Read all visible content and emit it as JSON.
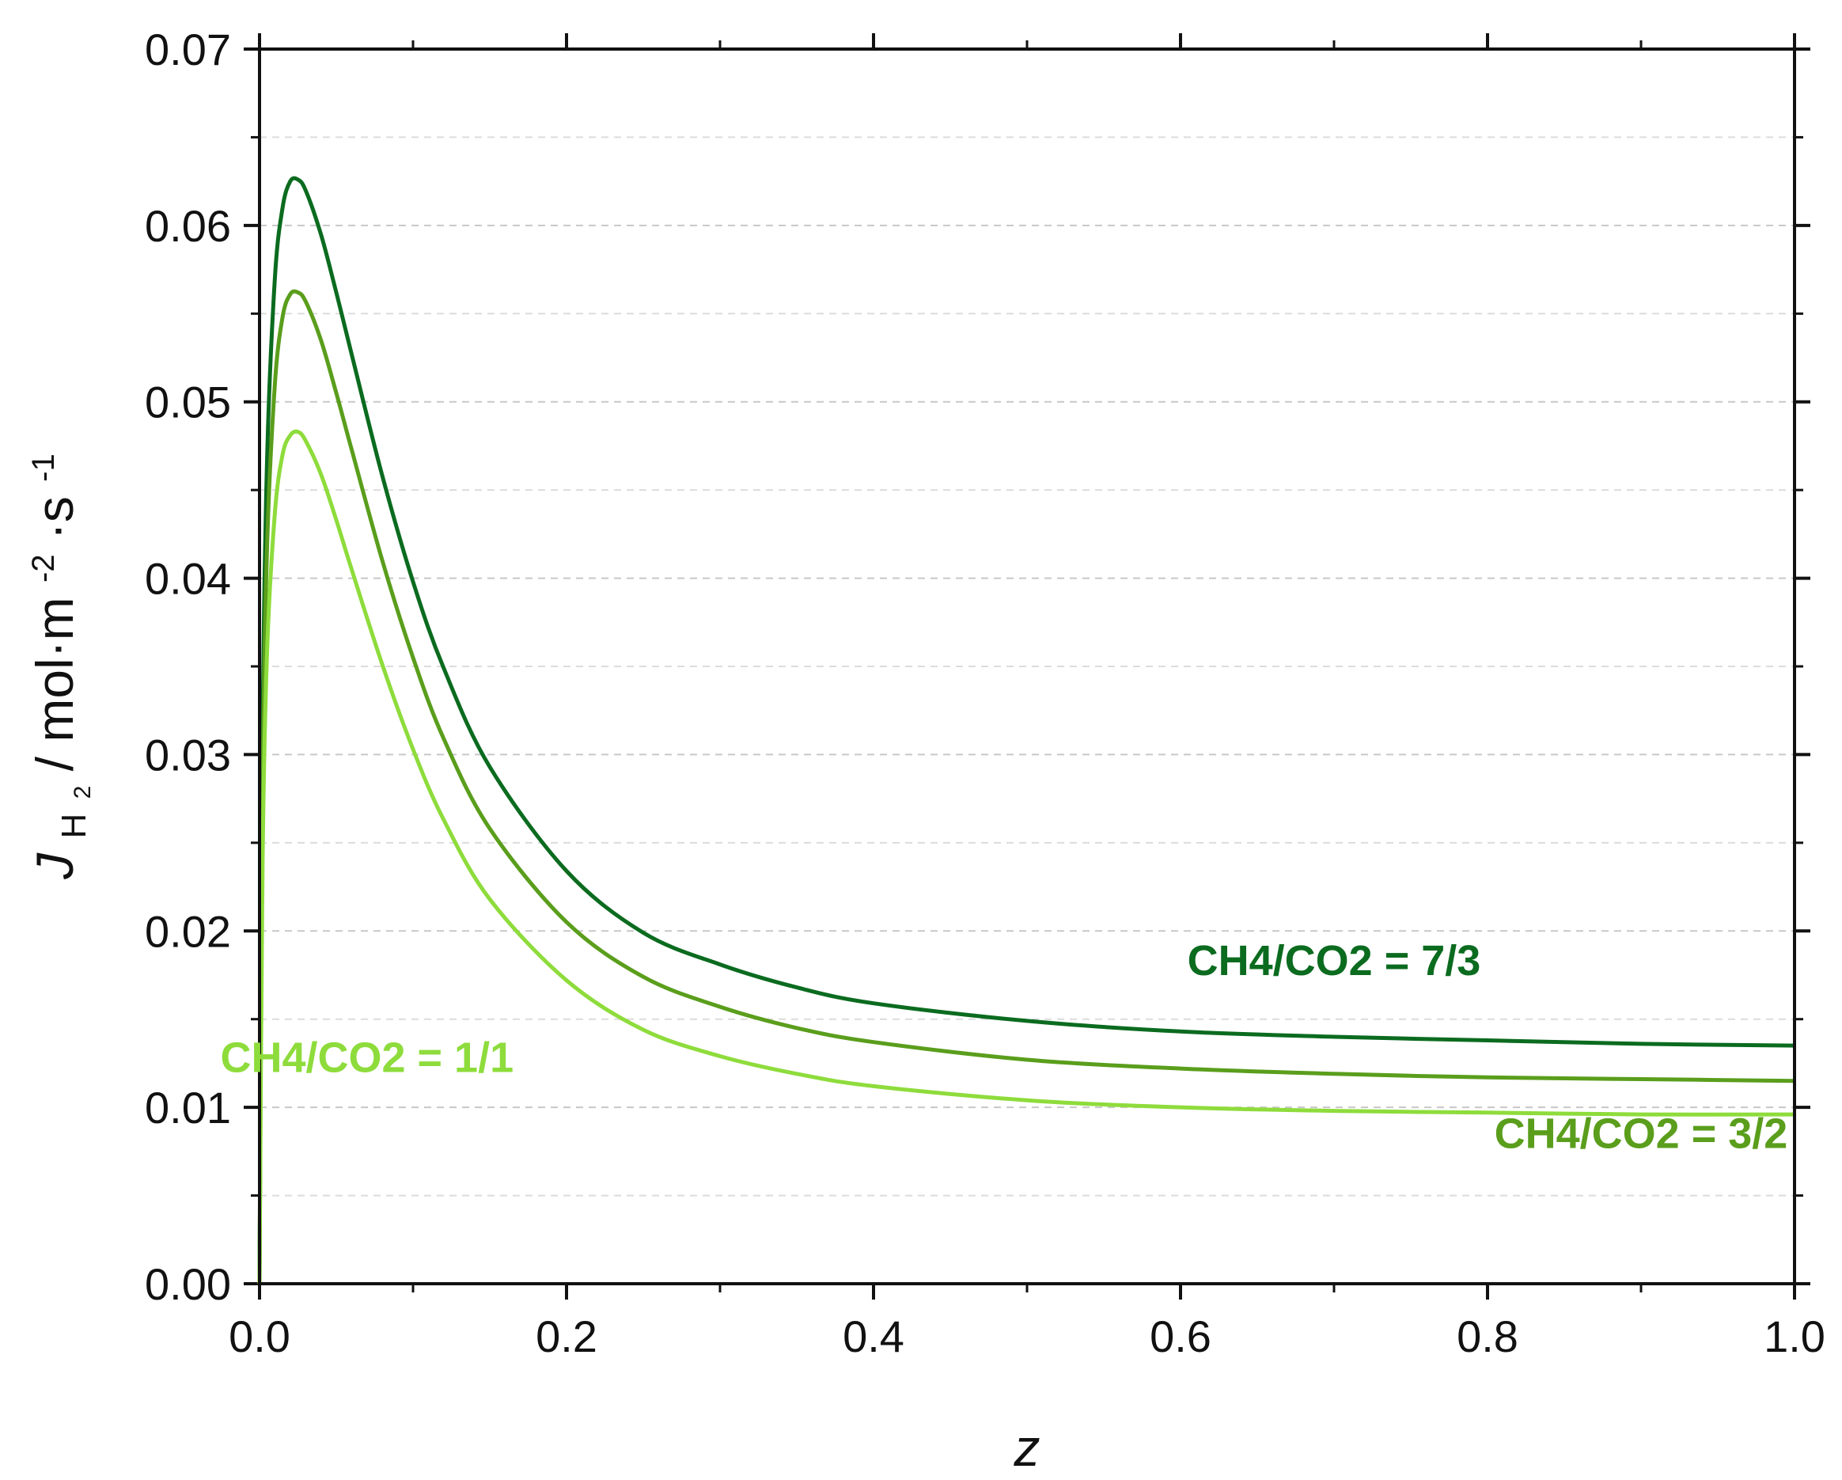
{
  "chart_data": {
    "type": "line",
    "title": "",
    "xlabel": "z",
    "ylabel": {
      "symbol": "J",
      "subscript": "H",
      "subscript_index": "2",
      "units_prefix": " / mol·m",
      "exp1": "-2",
      "units_mid": "·s",
      "exp2": "-1"
    },
    "xlim": [
      0,
      1
    ],
    "ylim": [
      0,
      0.07
    ],
    "grid": "horizontal dashed",
    "x_ticks": [
      "0.0",
      "0.2",
      "0.4",
      "0.6",
      "0.8",
      "1.0"
    ],
    "y_ticks": [
      "0.00",
      "0.01",
      "0.02",
      "0.03",
      "0.04",
      "0.05",
      "0.06",
      "0.07"
    ],
    "x": [
      0,
      0.002,
      0.005,
      0.01,
      0.015,
      0.02,
      0.025,
      0.03,
      0.04,
      0.05,
      0.06,
      0.08,
      0.1,
      0.12,
      0.15,
      0.2,
      0.25,
      0.3,
      0.35,
      0.4,
      0.5,
      0.6,
      0.7,
      0.8,
      0.9,
      1.0
    ],
    "series": [
      {
        "name": "CH4/CO2 = 7/3",
        "color": "#0b6b1f",
        "values": [
          0.0,
          0.031,
          0.047,
          0.057,
          0.061,
          0.0625,
          0.0626,
          0.062,
          0.0595,
          0.0562,
          0.0527,
          0.0458,
          0.0398,
          0.0349,
          0.0293,
          0.0234,
          0.0199,
          0.0181,
          0.0168,
          0.0159,
          0.0149,
          0.0143,
          0.014,
          0.0138,
          0.0136,
          0.0135
        ]
      },
      {
        "name": "CH4/CO2 = 3/2",
        "color": "#5a9e1c",
        "values": [
          0.0,
          0.028,
          0.042,
          0.051,
          0.0548,
          0.0561,
          0.0562,
          0.0557,
          0.0535,
          0.0505,
          0.0473,
          0.041,
          0.0355,
          0.0309,
          0.0258,
          0.0205,
          0.0174,
          0.0157,
          0.0145,
          0.0137,
          0.0127,
          0.0122,
          0.0119,
          0.0117,
          0.0116,
          0.0115
        ]
      },
      {
        "name": "CH4/CO2 = 1/1",
        "color": "#8edc3c",
        "values": [
          0.0,
          0.024,
          0.036,
          0.0437,
          0.047,
          0.0481,
          0.0483,
          0.0478,
          0.0459,
          0.0433,
          0.0405,
          0.0351,
          0.0303,
          0.0263,
          0.0218,
          0.0172,
          0.0144,
          0.0129,
          0.0119,
          0.0112,
          0.0104,
          0.01,
          0.0098,
          0.0097,
          0.0096,
          0.0096
        ]
      }
    ],
    "annotations": [
      {
        "text": "CH4/CO2 = 7/3",
        "color": "#0b6b1f",
        "x": 0.7,
        "y": 0.0175
      },
      {
        "text": "CH4/CO2 = 1/1",
        "color": "#8edc3c",
        "x": 0.07,
        "y": 0.012
      },
      {
        "text": "CH4/CO2 = 3/2",
        "color": "#5a9e1c",
        "x": 0.9,
        "y": 0.0077
      }
    ]
  }
}
